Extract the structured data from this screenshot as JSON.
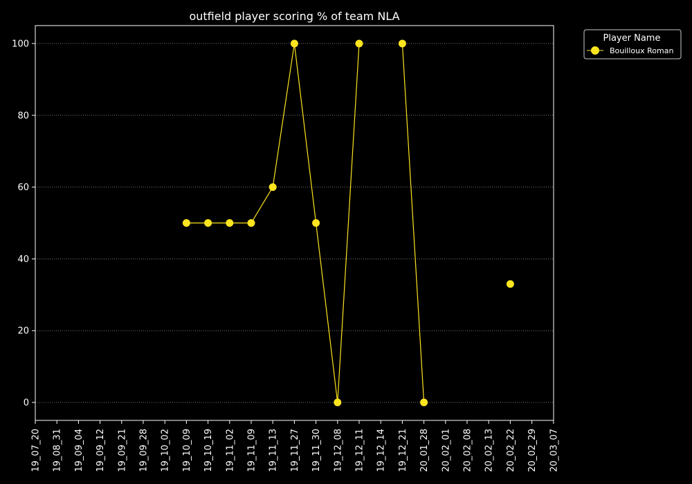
{
  "colors": {
    "background": "#000000",
    "foreground": "#ffffff",
    "series": "#ffe51f",
    "grid": "#bbbbbb"
  },
  "chart_data": {
    "type": "line",
    "title": "outfield player scoring % of team NLA",
    "xlabel": "",
    "ylabel": "",
    "categories": [
      "19_07_20",
      "19_08_31",
      "19_09_04",
      "19_09_12",
      "19_09_21",
      "19_09_28",
      "19_10_02",
      "19_10_09",
      "19_10_19",
      "19_11_02",
      "19_11_09",
      "19_11_13",
      "19_11_27",
      "19_11_30",
      "19_12_08",
      "19_12_11",
      "19_12_14",
      "19_12_21",
      "20_01_28",
      "20_02_01",
      "20_02_08",
      "20_02_13",
      "20_02_22",
      "20_02_29",
      "20_03_07"
    ],
    "y_ticks": [
      0,
      20,
      40,
      60,
      80,
      100
    ],
    "ylim": [
      -5,
      105
    ],
    "grid": "horizontal dotted",
    "legend": {
      "title": "Player Name",
      "placement": "upper right, outside plot"
    },
    "series": [
      {
        "name": "Bouilloux Roman",
        "color": "#ffe51f",
        "values": [
          null,
          null,
          null,
          null,
          null,
          null,
          null,
          50,
          50,
          50,
          50,
          60,
          100,
          50,
          0,
          100,
          null,
          100,
          0,
          null,
          null,
          null,
          33,
          null,
          null
        ]
      }
    ]
  }
}
